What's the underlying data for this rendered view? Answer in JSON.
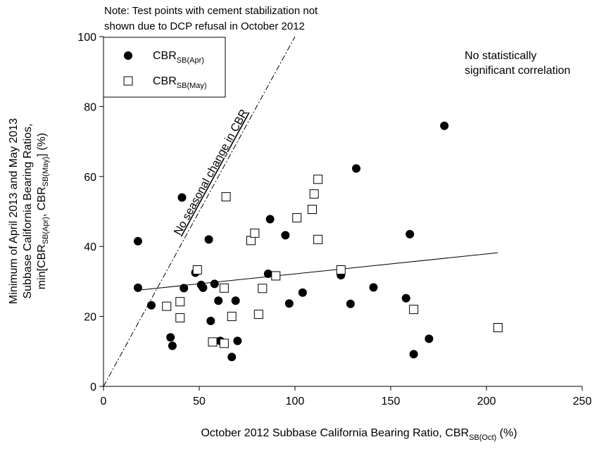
{
  "note": {
    "line1": "Note: Test points with cement stabilization not",
    "line2": "shown due to DCP refusal in October 2012"
  },
  "annotation": {
    "line1": "No statistically",
    "line2": "significant correlation"
  },
  "line_label": "No seasonal change in CBR",
  "chart_data": {
    "type": "scatter",
    "xlabel": {
      "main": "October 2012 Subbase California Bearing Ratio, CBR",
      "sub": "SB(Oct)",
      "suffix": " (%)"
    },
    "ylabel": {
      "line1": "Minimum of April 2013 and May 2013",
      "line2": "Subbase California Bearing Ratios,",
      "line3_main": "min[CBR",
      "line3_sub1": "SB(Apr)",
      "line3_mid": ", CBR",
      "line3_sub2": "SB(May)",
      "line3_end": "] (%)"
    },
    "xlim": [
      0,
      250
    ],
    "ylim": [
      0,
      100
    ],
    "x_ticks": [
      0,
      50,
      100,
      150,
      200,
      250
    ],
    "y_ticks": [
      0,
      20,
      40,
      60,
      80,
      100
    ],
    "grid": false,
    "legend_position": "top-left",
    "series": [
      {
        "name": "CBR",
        "name_sub": "SB(Apr)",
        "marker": "filled-circle",
        "color": "#000000",
        "points": [
          [
            18,
            41.5
          ],
          [
            18,
            28.2
          ],
          [
            25,
            23.2
          ],
          [
            35,
            14
          ],
          [
            36,
            11.6
          ],
          [
            41,
            54
          ],
          [
            42,
            28.1
          ],
          [
            48,
            32.5
          ],
          [
            51,
            29
          ],
          [
            52,
            28.2
          ],
          [
            55,
            42
          ],
          [
            56,
            18.7
          ],
          [
            58,
            29.3
          ],
          [
            60,
            24.5
          ],
          [
            61,
            13
          ],
          [
            67,
            8.4
          ],
          [
            69,
            24.5
          ],
          [
            70,
            13
          ],
          [
            86,
            32.2
          ],
          [
            87,
            47.8
          ],
          [
            95,
            43.2
          ],
          [
            97,
            23.7
          ],
          [
            104,
            26.8
          ],
          [
            124,
            31.8
          ],
          [
            129,
            23.6
          ],
          [
            132,
            62.3
          ],
          [
            141,
            28.3
          ],
          [
            158,
            25.2
          ],
          [
            160,
            43.5
          ],
          [
            162,
            9.2
          ],
          [
            170,
            13.6
          ],
          [
            178,
            74.5
          ]
        ]
      },
      {
        "name": "CBR",
        "name_sub": "SB(May)",
        "marker": "open-square",
        "color": "#000000",
        "points": [
          [
            33,
            22.9
          ],
          [
            40,
            24.2
          ],
          [
            40,
            19.6
          ],
          [
            49,
            33.3
          ],
          [
            57,
            12.7
          ],
          [
            63,
            12.3
          ],
          [
            63,
            28.1
          ],
          [
            64,
            54.2
          ],
          [
            67,
            20
          ],
          [
            77,
            41.7
          ],
          [
            79,
            43.8
          ],
          [
            81,
            20.6
          ],
          [
            83,
            28
          ],
          [
            90,
            31.6
          ],
          [
            101,
            48.2
          ],
          [
            109,
            50.6
          ],
          [
            110,
            55
          ],
          [
            112,
            59.2
          ],
          [
            112,
            42
          ],
          [
            124,
            33.3
          ],
          [
            162,
            22
          ],
          [
            206,
            16.8
          ]
        ]
      }
    ],
    "lines": [
      {
        "kind": "one-to-one",
        "style": "dash-dot",
        "from": [
          0,
          0
        ],
        "to": [
          100,
          100
        ]
      },
      {
        "kind": "regression",
        "style": "solid",
        "from": [
          18,
          27.5
        ],
        "to": [
          206,
          38.2
        ]
      }
    ]
  }
}
